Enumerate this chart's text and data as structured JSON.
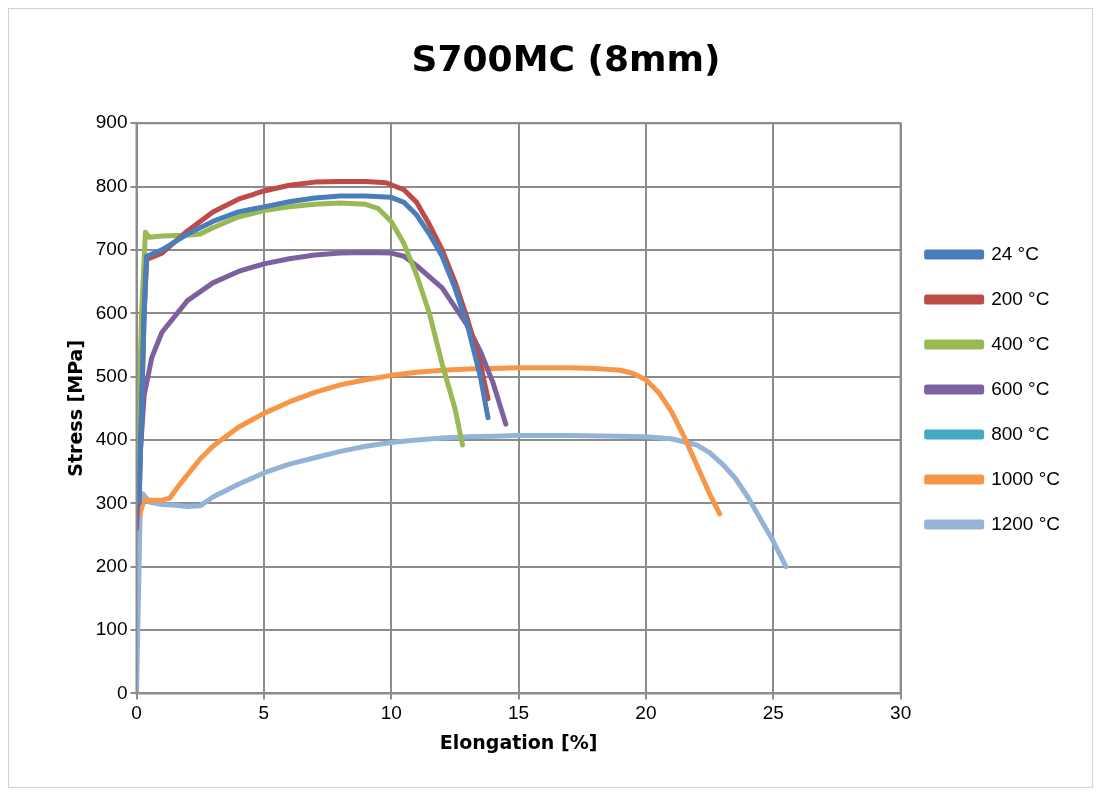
{
  "chart_data": {
    "type": "line",
    "title": "S700MC (8mm)",
    "xlabel": "Elongation [%]",
    "ylabel": "Stress [MPa]",
    "xlim": [
      0,
      30
    ],
    "xticks": [
      0,
      5,
      10,
      15,
      20,
      25,
      30
    ],
    "ylim": [
      0,
      900
    ],
    "yticks": [
      0,
      100,
      200,
      300,
      400,
      500,
      600,
      700,
      800,
      900
    ],
    "grid": true,
    "legend": "right",
    "series": [
      {
        "name": "24 °C",
        "color": "#4a7ebb",
        "x": [
          0.1,
          0.3,
          0.4,
          1,
          2,
          3,
          4,
          5,
          6,
          7,
          8,
          9,
          10,
          10.5,
          11,
          11.5,
          12,
          12.5,
          13,
          13.5,
          13.8
        ],
        "values": [
          300,
          600,
          690,
          700,
          725,
          745,
          760,
          768,
          776,
          782,
          785,
          785,
          783,
          775,
          755,
          725,
          690,
          640,
          580,
          500,
          435
        ]
      },
      {
        "name": "200 °C",
        "color": "#be4b48",
        "x": [
          0.1,
          0.3,
          0.4,
          1,
          2,
          3,
          4,
          5,
          6,
          7,
          8,
          9,
          9.8,
          10.5,
          11,
          11.5,
          12,
          12.5,
          13,
          13.5,
          13.8
        ],
        "values": [
          300,
          600,
          685,
          695,
          730,
          760,
          780,
          793,
          802,
          807,
          808,
          808,
          806,
          795,
          775,
          740,
          700,
          650,
          590,
          520,
          465
        ]
      },
      {
        "name": "400 °C",
        "color": "#98b954",
        "x": [
          0,
          0.2,
          0.35,
          0.5,
          1,
          2,
          2.5,
          3,
          4,
          5,
          6,
          7,
          8,
          9,
          9.5,
          10,
          10.5,
          11,
          11.5,
          12,
          12.5,
          12.8
        ],
        "values": [
          300,
          600,
          728,
          720,
          722,
          723,
          725,
          735,
          752,
          762,
          768,
          772,
          774,
          772,
          765,
          745,
          710,
          660,
          600,
          520,
          450,
          392
        ]
      },
      {
        "name": "600 °C",
        "color": "#7d60a0",
        "x": [
          0,
          0.1,
          0.3,
          0.6,
          1,
          2,
          3,
          4,
          5,
          6,
          7,
          8,
          9,
          10,
          10.5,
          11,
          12,
          13,
          13.5,
          14,
          14.5
        ],
        "values": [
          260,
          350,
          470,
          530,
          570,
          620,
          648,
          666,
          678,
          686,
          692,
          695,
          696,
          695,
          690,
          675,
          640,
          580,
          540,
          490,
          425
        ]
      },
      {
        "name": "800 °C",
        "color": "#46aac5"
      },
      {
        "name": "1000 °C",
        "color": "#f79646",
        "x": [
          0.1,
          0.3,
          1,
          1.3,
          1.7,
          2.5,
          3,
          4,
          5,
          6,
          7,
          8,
          9,
          10,
          11,
          12,
          13,
          14,
          15,
          16,
          17,
          18,
          19,
          19.5,
          20,
          20.5,
          21,
          21.5,
          22,
          22.5,
          22.9
        ],
        "values": [
          280,
          305,
          305,
          308,
          330,
          370,
          390,
          420,
          442,
          460,
          475,
          487,
          495,
          502,
          507,
          510,
          512,
          513,
          514,
          514,
          514,
          513,
          510,
          505,
          495,
          475,
          445,
          405,
          360,
          315,
          283
        ]
      },
      {
        "name": "1200 °C",
        "color": "#95b3d7",
        "x": [
          0,
          0.05,
          0.1,
          0.15,
          0.25,
          0.5,
          1,
          1.5,
          2,
          2.5,
          3,
          4,
          5,
          6,
          7,
          8,
          9,
          10,
          11,
          12,
          13,
          14,
          15,
          17,
          19,
          20,
          21,
          22,
          22.5,
          23,
          23.5,
          24,
          24.5,
          25,
          25.5
        ],
        "values": [
          0,
          100,
          200,
          300,
          315,
          302,
          298,
          297,
          295,
          296,
          310,
          330,
          348,
          362,
          372,
          382,
          390,
          396,
          400,
          403,
          405,
          406,
          407,
          407,
          406,
          405,
          402,
          392,
          380,
          362,
          340,
          310,
          275,
          240,
          200
        ]
      }
    ]
  }
}
